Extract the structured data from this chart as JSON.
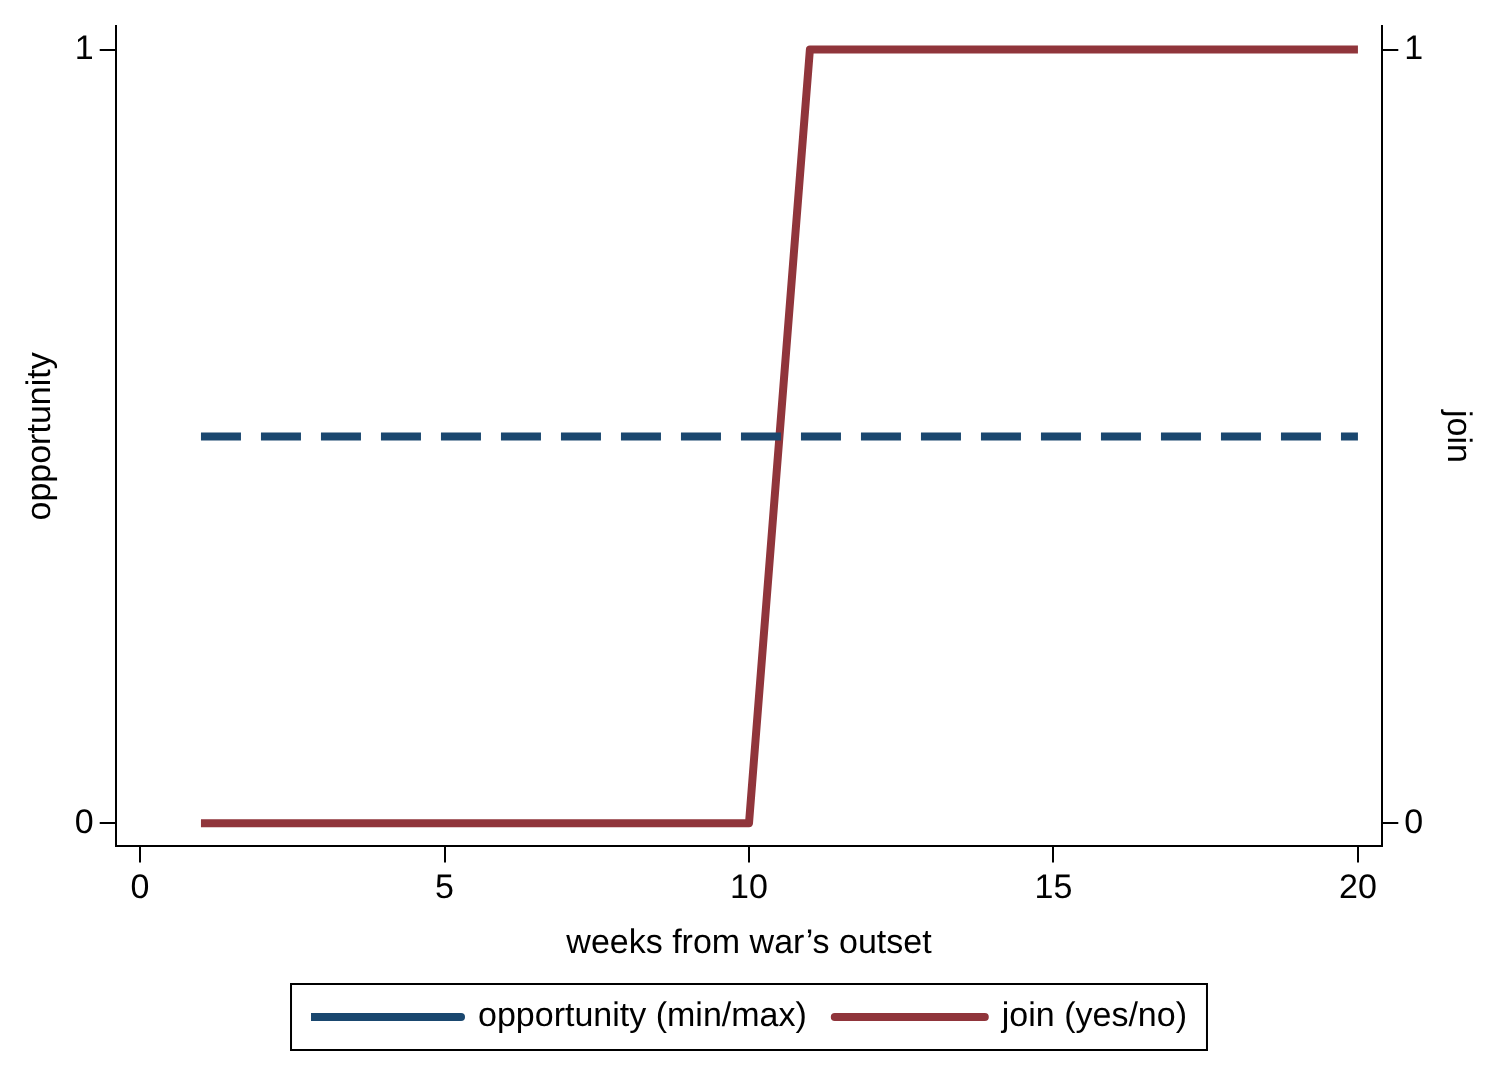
{
  "chart_data": {
    "type": "line",
    "xlabel": "weeks from war’s outset",
    "ylabel": "opportunity",
    "y2label": "join",
    "x": [
      1,
      2,
      3,
      4,
      5,
      6,
      7,
      8,
      9,
      10,
      11,
      12,
      13,
      14,
      15,
      16,
      17,
      18,
      19,
      20
    ],
    "series": [
      {
        "name": "opportunity (min/max)",
        "color": "#1a476f",
        "line_style": "dashed",
        "values": [
          0.5,
          0.5,
          0.5,
          0.5,
          0.5,
          0.5,
          0.5,
          0.5,
          0.5,
          0.5,
          0.5,
          0.5,
          0.5,
          0.5,
          0.5,
          0.5,
          0.5,
          0.5,
          0.5,
          0.5
        ]
      },
      {
        "name": "join (yes/no)",
        "color": "#90353b",
        "line_style": "solid",
        "axis": "y2",
        "values": [
          0,
          0,
          0,
          0,
          0,
          0,
          0,
          0,
          0,
          0,
          1,
          1,
          1,
          1,
          1,
          1,
          1,
          1,
          1,
          1
        ]
      }
    ],
    "xlim": [
      -0.4,
      20.4
    ],
    "xticks": [
      0,
      5,
      10,
      15,
      20
    ],
    "ylim": [
      -0.03,
      1.03
    ],
    "yticks": [
      0,
      1
    ],
    "y2lim": [
      -0.03,
      1.03
    ],
    "y2ticks": [
      0,
      1
    ],
    "grid": false,
    "legend": "bottom",
    "marker": "none"
  }
}
